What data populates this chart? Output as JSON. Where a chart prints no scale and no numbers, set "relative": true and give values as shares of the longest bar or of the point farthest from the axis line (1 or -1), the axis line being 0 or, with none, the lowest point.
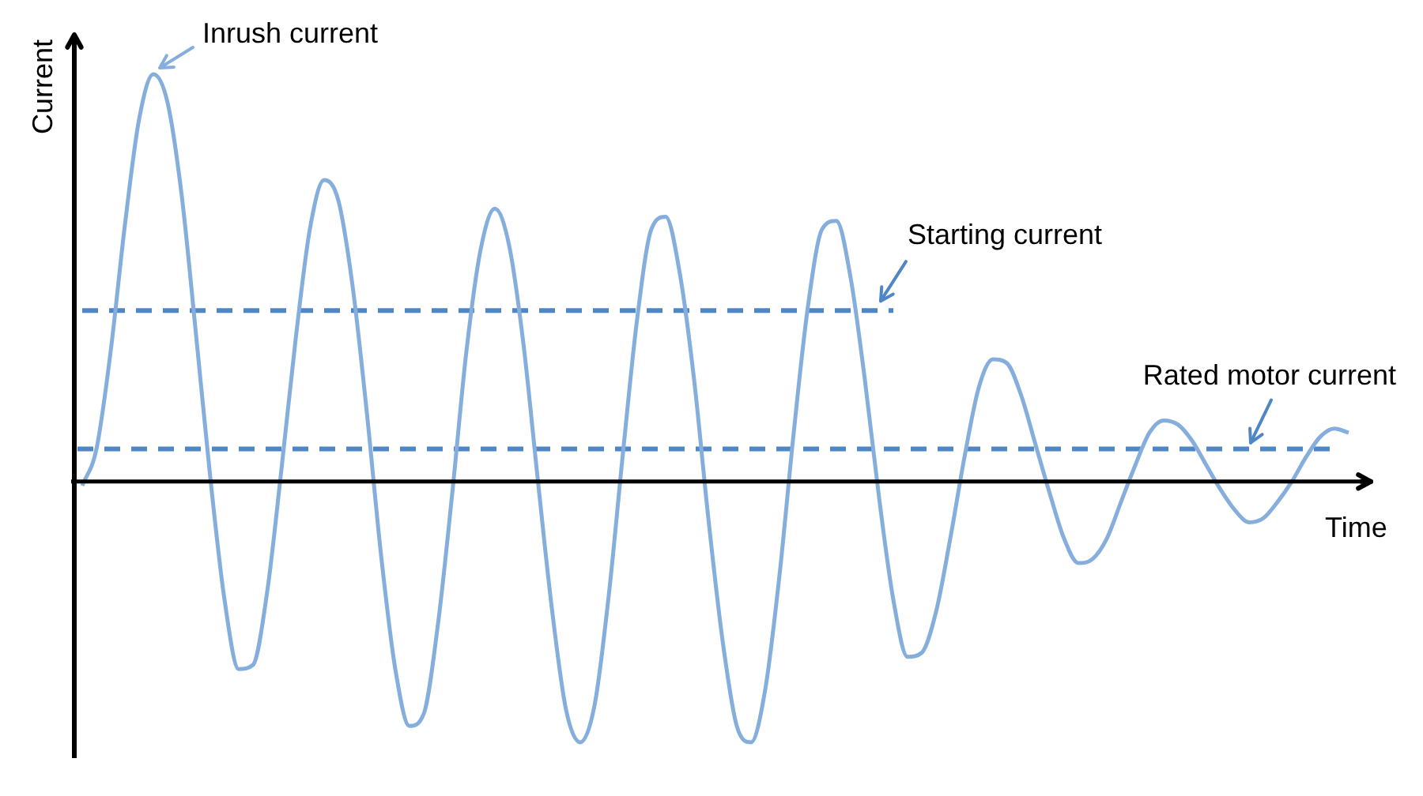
{
  "chart_data": {
    "type": "line",
    "relative": true,
    "xlabel": "Time",
    "ylabel": "Current",
    "marker": "none",
    "categories": [
      null,
      null,
      null,
      null,
      null,
      null,
      null,
      null,
      null,
      null,
      null,
      null,
      null,
      null,
      null,
      null,
      null,
      null,
      null,
      null,
      null,
      null,
      null,
      null,
      null,
      null,
      null,
      null,
      null,
      null,
      null,
      null,
      null,
      null,
      null,
      null,
      null,
      null,
      null,
      null,
      null,
      null,
      null,
      null,
      null,
      null,
      null,
      null,
      null,
      null,
      null,
      null,
      null,
      null,
      null,
      null,
      null,
      null,
      null,
      null,
      null,
      null,
      null,
      null,
      null,
      null,
      null,
      null,
      null,
      null,
      null,
      null,
      null,
      null,
      null,
      null,
      null,
      null,
      null,
      null,
      null,
      null,
      null,
      null,
      null,
      null,
      null,
      null,
      null,
      null
    ],
    "series": [
      {
        "color": "#86aedd",
        "line_style": "solid",
        "values": [
          -0.01,
          0.08,
          0.32,
          0.63,
          0.89,
          1,
          0.93,
          0.7,
          0.36,
          0.01,
          -0.29,
          -0.46,
          -0.45,
          -0.27,
          0.03,
          0.35,
          0.62,
          0.74,
          0.69,
          0.48,
          0.17,
          -0.18,
          -0.46,
          -0.6,
          -0.57,
          -0.35,
          -0.03,
          0.32,
          0.57,
          0.67,
          0.58,
          0.34,
          0.01,
          -0.31,
          -0.56,
          -0.64,
          -0.55,
          -0.28,
          0.07,
          0.4,
          0.62,
          0.65,
          0.51,
          0.25,
          -0.09,
          -0.39,
          -0.6,
          -0.64,
          -0.51,
          -0.23,
          0.12,
          0.43,
          0.62,
          0.64,
          0.5,
          0.25,
          -0.04,
          -0.29,
          -0.43,
          -0.42,
          -0.32,
          -0.14,
          0.06,
          0.23,
          0.3,
          0.29,
          0.21,
          0.09,
          -0.03,
          -0.14,
          -0.2,
          -0.19,
          -0.14,
          -0.05,
          0.04,
          0.12,
          0.15,
          0.14,
          0.1,
          0.04,
          -0.02,
          -0.07,
          -0.1,
          -0.09,
          -0.05,
          0.0,
          0.06,
          0.11,
          0.13,
          0.12
        ]
      },
      {
        "name": "Starting current",
        "color": "#4f86c6",
        "line_style": "dashed",
        "values": [
          0.42,
          0.42,
          0.42,
          0.42,
          0.42,
          0.42,
          0.42,
          0.42,
          0.42,
          0.42,
          0.42,
          0.42,
          0.42,
          0.42,
          0.42,
          0.42,
          0.42,
          0.42,
          0.42,
          0.42,
          0.42,
          0.42,
          0.42,
          0.42,
          0.42,
          0.42,
          0.42,
          0.42,
          0.42,
          0.42,
          0.42,
          0.42,
          0.42,
          0.42,
          0.42,
          0.42,
          0.42,
          0.42,
          0.42,
          0.42,
          0.42,
          0.42,
          0.42,
          0.42,
          0.42,
          0.42,
          0.42,
          0.42,
          0.42,
          0.42,
          0.42,
          0.42,
          0.42,
          0.42,
          0.42,
          0.42,
          0.42,
          0.42,
          null,
          null,
          null,
          null,
          null,
          null,
          null,
          null,
          null,
          null,
          null,
          null,
          null,
          null,
          null,
          null,
          null,
          null,
          null,
          null,
          null,
          null,
          null,
          null,
          null,
          null,
          null,
          null,
          null,
          null,
          null,
          null
        ]
      }
    ],
    "ref_lines": [
      {
        "axis": "y",
        "value": 0.08,
        "label": "Rated motor current",
        "color": "#4f86c6",
        "line_style": "dashed"
      }
    ],
    "annotations": [
      "Inrush current"
    ]
  }
}
